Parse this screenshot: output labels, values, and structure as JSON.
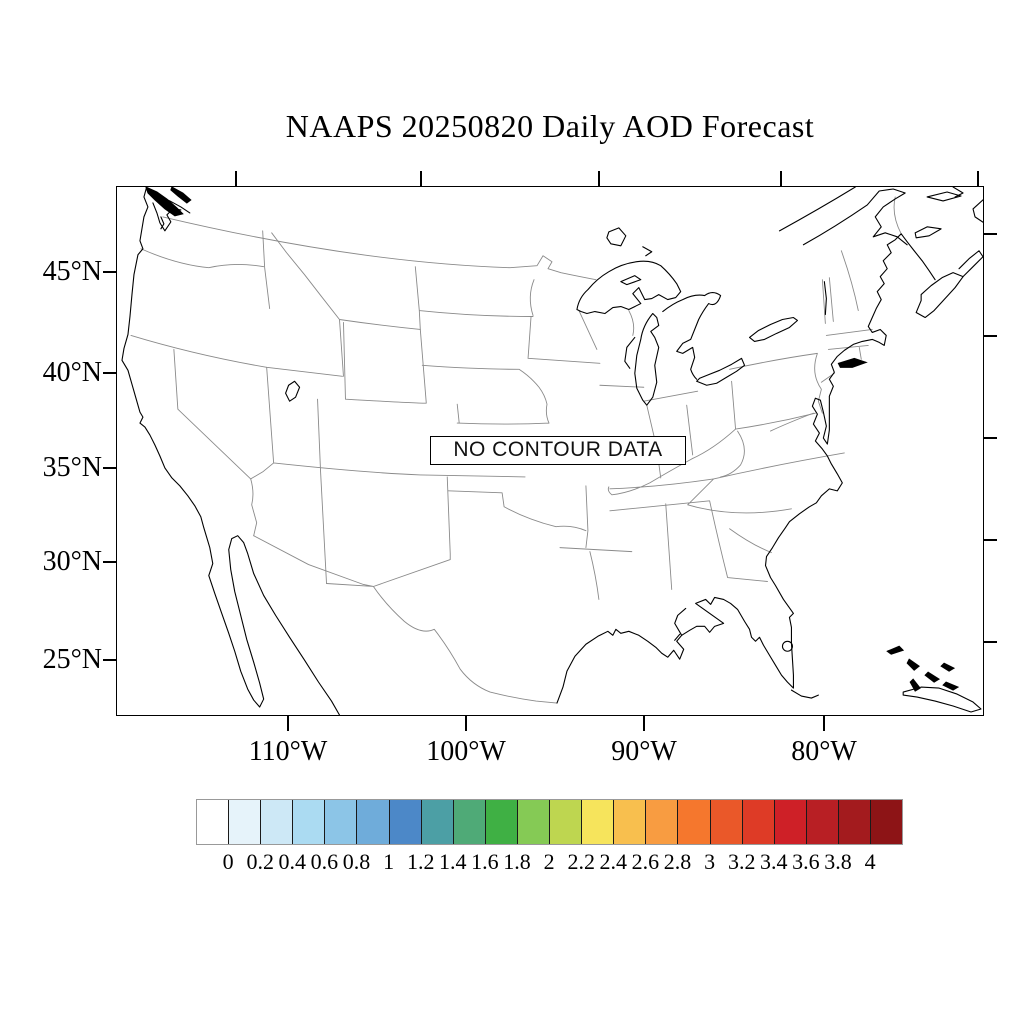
{
  "title": "NAAPS 20250820 Daily AOD Forecast",
  "map": {
    "no_data_label": "NO CONTOUR DATA",
    "lat_labels": [
      "45°N",
      "40°N",
      "35°N",
      "30°N",
      "25°N"
    ],
    "lon_labels": [
      "110°W",
      "100°W",
      "90°W",
      "80°W"
    ]
  },
  "chart_data": {
    "type": "heatmap",
    "subtype": "geographic-contour-map",
    "title": "NAAPS 20250820 Daily AOD Forecast",
    "region": "Continental United States",
    "data_status": "NO CONTOUR DATA",
    "series": [],
    "y_tick_labels": [
      "45°N",
      "40°N",
      "35°N",
      "30°N",
      "25°N"
    ],
    "x_tick_labels": [
      "110°W",
      "100°W",
      "90°W",
      "80°W"
    ],
    "grid": false,
    "legend_position": "bottom",
    "colorbar": {
      "levels": [
        "0",
        "0.2",
        "0.4",
        "0.6",
        "0.8",
        "1",
        "1.2",
        "1.4",
        "1.6",
        "1.8",
        "2",
        "2.2",
        "2.4",
        "2.6",
        "2.8",
        "3",
        "3.2",
        "3.4",
        "3.6",
        "3.8",
        "4"
      ],
      "colors": [
        "#FFFFFF",
        "#E6F3FA",
        "#CDE8F6",
        "#ABDBF2",
        "#8CC5E7",
        "#6FACDA",
        "#4C88C8",
        "#4C9FA5",
        "#4FAA77",
        "#3FB044",
        "#85CA55",
        "#BED650",
        "#F6E45C",
        "#F8BF4E",
        "#F89C41",
        "#F5772D",
        "#EA5829",
        "#DE3B26",
        "#CE2027",
        "#B81F24",
        "#A31B1E",
        "#8D1416"
      ]
    }
  },
  "colors": {
    "coastline": "#000000",
    "state_borders": "#8a8a8a",
    "frame": "#000000",
    "background": "#ffffff"
  }
}
